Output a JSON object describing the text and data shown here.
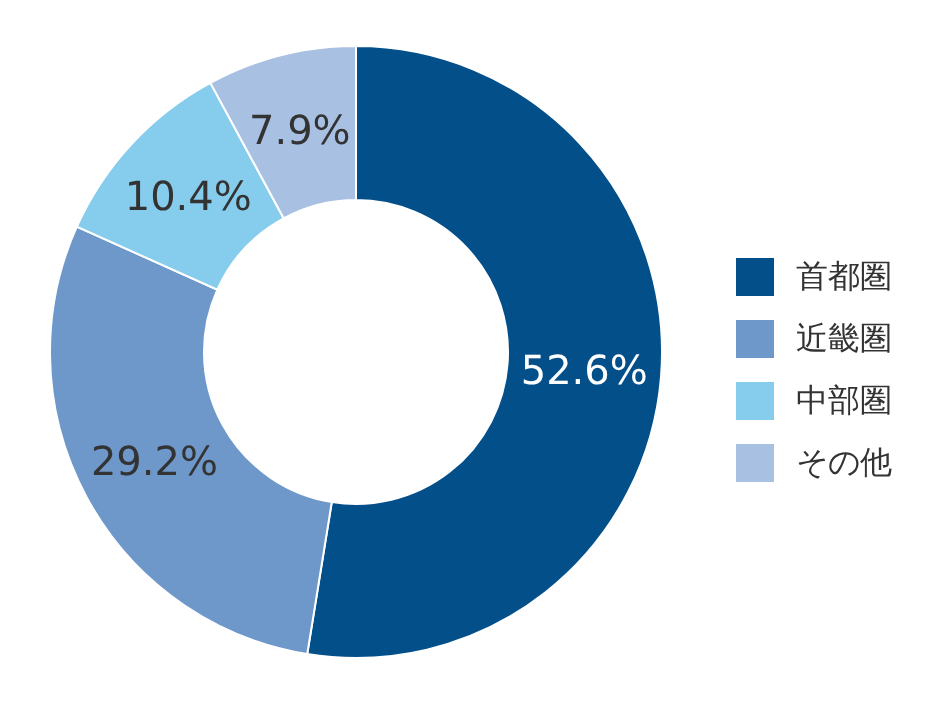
{
  "chart_data": {
    "type": "donut",
    "categories": [
      "首都圏",
      "近畿圏",
      "中部圏",
      "その他"
    ],
    "values": [
      52.6,
      29.2,
      10.4,
      7.9
    ],
    "colors": [
      "#034f8a",
      "#6e97ca",
      "#86ccec",
      "#a8c0e2"
    ],
    "value_labels": [
      "52.6%",
      "29.2%",
      "10.4%",
      "7.9%"
    ],
    "legend": "right"
  }
}
